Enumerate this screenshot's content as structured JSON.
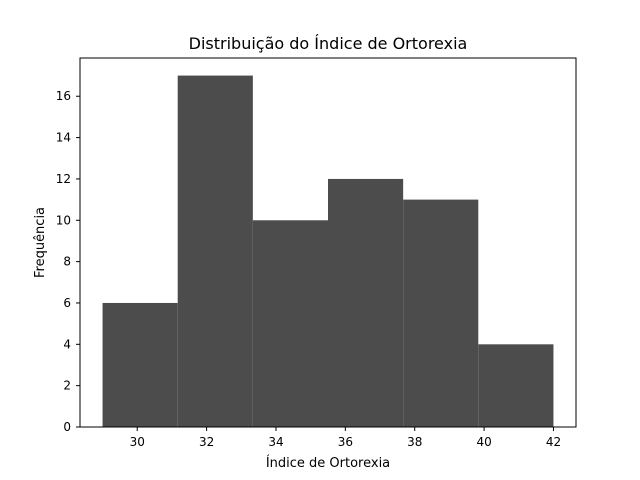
{
  "chart_data": {
    "type": "bar",
    "subtype": "histogram",
    "title": "Distribuição do Índice de Ortorexia",
    "xlabel": "Índice de Ortorexia",
    "ylabel": "Frequência",
    "bins": [
      {
        "start": 29.0,
        "end": 31.1667,
        "count": 6
      },
      {
        "start": 31.1667,
        "end": 33.3333,
        "count": 17
      },
      {
        "start": 33.3333,
        "end": 35.5,
        "count": 10
      },
      {
        "start": 35.5,
        "end": 37.6667,
        "count": 12
      },
      {
        "start": 37.6667,
        "end": 39.8333,
        "count": 11
      },
      {
        "start": 39.8333,
        "end": 42.0,
        "count": 4
      }
    ],
    "xlim": [
      28.35,
      42.65
    ],
    "ylim": [
      0,
      17.85
    ],
    "xticks": [
      30,
      32,
      34,
      36,
      38,
      40,
      42
    ],
    "xtick_labels": [
      "30",
      "32",
      "34",
      "36",
      "38",
      "40",
      "42"
    ],
    "yticks": [
      0,
      2,
      4,
      6,
      8,
      10,
      12,
      14,
      16
    ],
    "ytick_labels": [
      "0",
      "2",
      "4",
      "6",
      "8",
      "10",
      "12",
      "14",
      "16"
    ],
    "grid": false,
    "legend": "none",
    "bar_color": "#4c4c4c"
  }
}
